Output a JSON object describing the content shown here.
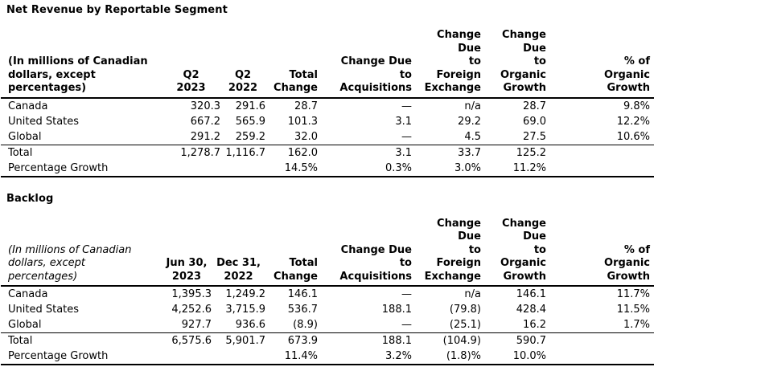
{
  "colors": {
    "text": "#000000",
    "background": "#ffffff",
    "rule": "#000000"
  },
  "sections": [
    {
      "title": "Net Revenue by Reportable Segment",
      "table": {
        "caption": "(In millions of Canadian\ndollars, except\npercentages)",
        "columns": [
          "Q2\n2023",
          "Q2\n2022",
          "Total\nChange",
          "Change Due\nto\nAcquisitions",
          "Change\nDue\nto\nForeign\nExchange",
          "Change\nDue\nto\nOrganic\nGrowth",
          "% of\nOrganic\nGrowth"
        ],
        "rows": [
          {
            "label": "Canada",
            "values": [
              "320.3",
              "291.6",
              "28.7",
              "—",
              "n/a",
              "28.7",
              "9.8%"
            ]
          },
          {
            "label": "United States",
            "values": [
              "667.2",
              "565.9",
              "101.3",
              "3.1",
              "29.2",
              "69.0",
              "12.2%"
            ]
          },
          {
            "label": "Global",
            "values": [
              "291.2",
              "259.2",
              "32.0",
              "—",
              "4.5",
              "27.5",
              "10.6%"
            ]
          },
          {
            "label": "Total",
            "values": [
              "1,278.7",
              "1,116.7",
              "162.0",
              "3.1",
              "33.7",
              "125.2",
              ""
            ]
          },
          {
            "label": "Percentage Growth",
            "values": [
              "",
              "",
              "14.5%",
              "0.3%",
              "3.0%",
              "11.2%",
              ""
            ]
          }
        ]
      }
    },
    {
      "title": "Backlog",
      "table": {
        "caption": "(In millions of Canadian\ndollars, except\npercentages)",
        "columns": [
          "Jun 30,\n2023",
          "Dec 31,\n2022",
          "Total\nChange",
          "Change Due\nto\nAcquisitions",
          "Change\nDue\nto\nForeign\nExchange",
          "Change\nDue\nto\nOrganic\nGrowth",
          "% of\nOrganic\nGrowth"
        ],
        "rows": [
          {
            "label": "Canada",
            "values": [
              "1,395.3",
              "1,249.2",
              "146.1",
              "—",
              "n/a",
              "146.1",
              "11.7%"
            ]
          },
          {
            "label": "United States",
            "values": [
              "4,252.6",
              "3,715.9",
              "536.7",
              "188.1",
              "(79.8)",
              "428.4",
              "11.5%"
            ]
          },
          {
            "label": "Global",
            "values": [
              "927.7",
              "936.6",
              "(8.9)",
              "—",
              "(25.1)",
              "16.2",
              "1.7%"
            ]
          },
          {
            "label": "Total",
            "values": [
              "6,575.6",
              "5,901.7",
              "673.9",
              "188.1",
              "(104.9)",
              "590.7",
              ""
            ]
          },
          {
            "label": "Percentage Growth",
            "values": [
              "",
              "",
              "11.4%",
              "3.2%",
              "(1.8)%",
              "10.0%",
              ""
            ]
          }
        ]
      }
    }
  ]
}
